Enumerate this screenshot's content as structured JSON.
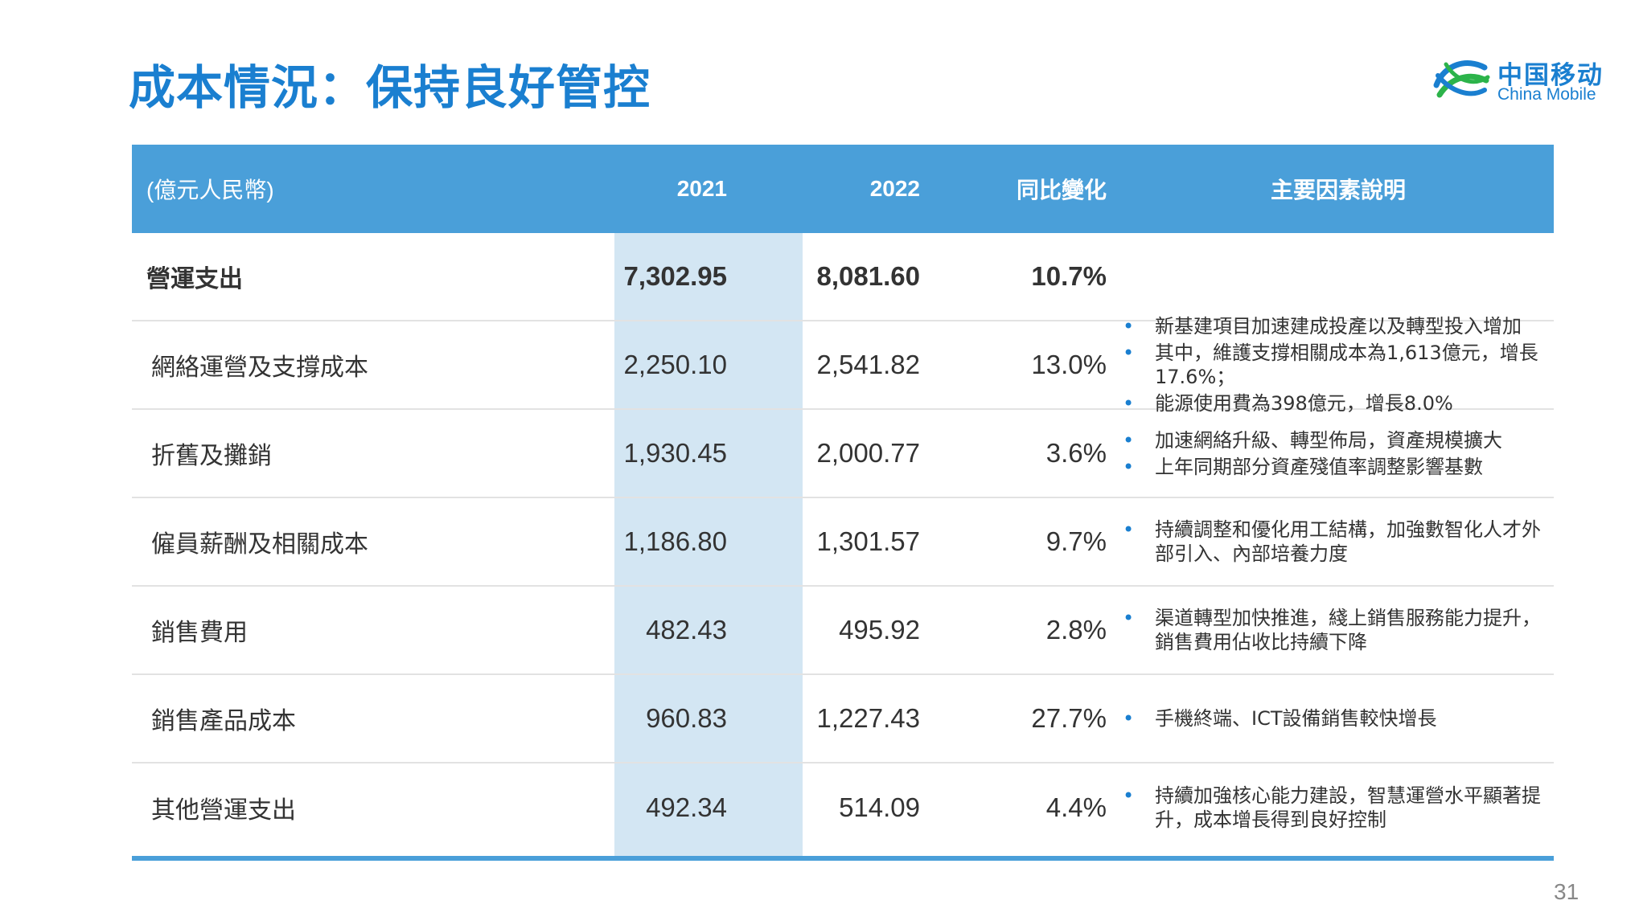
{
  "title": "成本情況：保持良好管控",
  "logo": {
    "cn": "中国移动",
    "en": "China Mobile"
  },
  "table": {
    "headers": {
      "unit": "(億元人民幣)",
      "y2021": "2021",
      "y2022": "2022",
      "change": "同比變化",
      "notes": "主要因素說明"
    },
    "rows": [
      {
        "name": "營運支出",
        "v2021": "7,302.95",
        "v2022": "8,081.60",
        "change": "10.7%",
        "notes": []
      },
      {
        "name": "網絡運營及支撐成本",
        "v2021": "2,250.10",
        "v2022": "2,541.82",
        "change": "13.0%",
        "notes": [
          "新基建項目加速建成投產以及轉型投入增加",
          "其中，維護支撐相關成本為1,613億元，增長17.6%；",
          "能源使用費為398億元，增長8.0%"
        ]
      },
      {
        "name": "折舊及攤銷",
        "v2021": "1,930.45",
        "v2022": "2,000.77",
        "change": "3.6%",
        "notes": [
          "加速網絡升級、轉型佈局，資產規模擴大",
          "上年同期部分資產殘值率調整影響基數"
        ]
      },
      {
        "name": "僱員薪酬及相關成本",
        "v2021": "1,186.80",
        "v2022": "1,301.57",
        "change": "9.7%",
        "notes": [
          "持續調整和優化用工結構，加強數智化人才外部引入、內部培養力度"
        ]
      },
      {
        "name": "銷售費用",
        "v2021": "482.43",
        "v2022": "495.92",
        "change": "2.8%",
        "notes": [
          "渠道轉型加快推進，綫上銷售服務能力提升，銷售費用佔收比持續下降"
        ]
      },
      {
        "name": "銷售產品成本",
        "v2021": "960.83",
        "v2022": "1,227.43",
        "change": "27.7%",
        "notes": [
          "手機終端、ICT設備銷售較快增長"
        ]
      },
      {
        "name": "其他營運支出",
        "v2021": "492.34",
        "v2022": "514.09",
        "change": "4.4%",
        "notes": [
          "持續加強核心能力建設，智慧運營水平顯著提升，成本增長得到良好控制"
        ]
      }
    ]
  },
  "page_number": "31",
  "colors": {
    "title": "#1a7fd0",
    "header_bg": "#4a9fd9",
    "highlight_col": "#d3e6f3"
  }
}
